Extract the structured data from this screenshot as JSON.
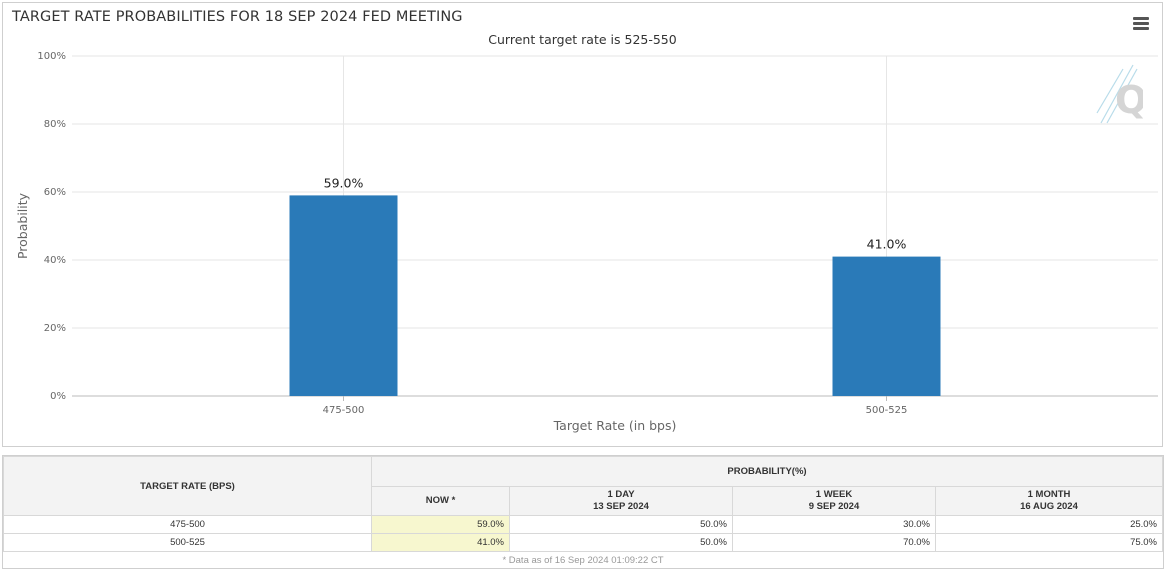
{
  "chart_title": "TARGET RATE PROBABILITIES FOR 18 SEP 2024 FED MEETING",
  "subtitle": "Current target rate is 525-550",
  "menu_icon": "hamburger-menu-icon",
  "logo_icon": "q-logo-icon",
  "chart_data": {
    "type": "bar",
    "title": "TARGET RATE PROBABILITIES FOR 18 SEP 2024 FED MEETING",
    "subtitle": "Current target rate is 525-550",
    "categories": [
      "475-500",
      "500-525"
    ],
    "values": [
      59.0,
      41.0
    ],
    "data_labels": [
      "59.0%",
      "41.0%"
    ],
    "xlabel": "Target Rate (in bps)",
    "ylabel": "Probability",
    "ylim": [
      0,
      100
    ],
    "yticks": [
      "0%",
      "20%",
      "40%",
      "60%",
      "80%",
      "100%"
    ],
    "grid": true,
    "bar_color": "#2a7ab8"
  },
  "table": {
    "col_rate": "TARGET RATE (BPS)",
    "col_prob": "PROBABILITY(%)",
    "now": "NOW *",
    "day_l1": "1 DAY",
    "day_l2": "13 SEP 2024",
    "week_l1": "1 WEEK",
    "week_l2": "9 SEP 2024",
    "month_l1": "1 MONTH",
    "month_l2": "16 AUG 2024",
    "rows": [
      {
        "rate": "475-500",
        "now": "59.0%",
        "day": "50.0%",
        "week": "30.0%",
        "month": "25.0%"
      },
      {
        "rate": "500-525",
        "now": "41.0%",
        "day": "50.0%",
        "week": "70.0%",
        "month": "75.0%"
      }
    ],
    "footnote": "* Data as of 16 Sep 2024 01:09:22 CT"
  }
}
